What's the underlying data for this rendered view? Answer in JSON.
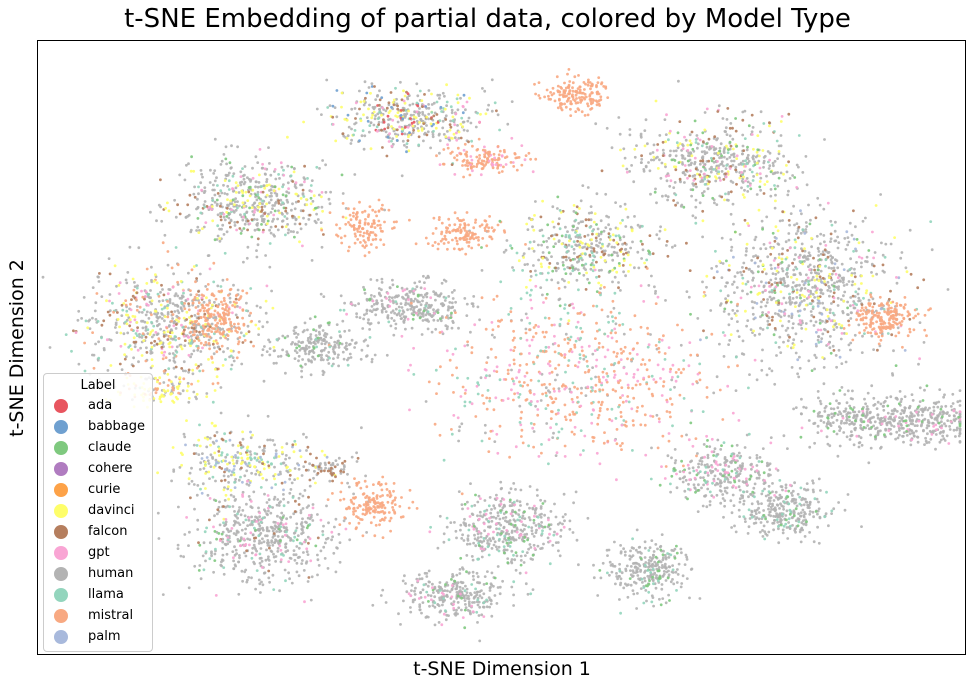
{
  "chart_data": {
    "type": "scatter",
    "title": "t-SNE Embedding of partial data, colored by Model Type",
    "xlabel": "t-SNE Dimension 1",
    "ylabel": "t-SNE Dimension 2",
    "xticks": [],
    "yticks": [],
    "grid": false,
    "legend": {
      "title": "Label",
      "placement": "lower-left",
      "entries": [
        {
          "name": "ada",
          "color": "#e8555f"
        },
        {
          "name": "babbage",
          "color": "#6fa0d0"
        },
        {
          "name": "claude",
          "color": "#7fc97f"
        },
        {
          "name": "cohere",
          "color": "#b07cc0"
        },
        {
          "name": "curie",
          "color": "#fda248"
        },
        {
          "name": "davinci",
          "color": "#fefe6a"
        },
        {
          "name": "falcon",
          "color": "#b57e5e"
        },
        {
          "name": "gpt",
          "color": "#f9a5d4"
        },
        {
          "name": "human",
          "color": "#b3b3b3"
        },
        {
          "name": "llama",
          "color": "#93d5bd"
        },
        {
          "name": "mistral",
          "color": "#f8a982"
        },
        {
          "name": "palm",
          "color": "#a8b9dc"
        }
      ]
    },
    "clusters": [
      {
        "x": 0.4,
        "y": 0.12,
        "rx": 0.08,
        "ry": 0.05,
        "n": 450,
        "mix": {
          "human": 0.55,
          "davinci": 0.15,
          "falcon": 0.1,
          "llama": 0.08,
          "gpt": 0.05,
          "babbage": 0.04,
          "ada": 0.03
        }
      },
      {
        "x": 0.48,
        "y": 0.19,
        "rx": 0.045,
        "ry": 0.025,
        "n": 140,
        "mix": {
          "mistral": 0.85,
          "gpt": 0.15
        }
      },
      {
        "x": 0.58,
        "y": 0.08,
        "rx": 0.035,
        "ry": 0.03,
        "n": 160,
        "mix": {
          "mistral": 1.0
        }
      },
      {
        "x": 0.73,
        "y": 0.19,
        "rx": 0.09,
        "ry": 0.07,
        "n": 550,
        "mix": {
          "human": 0.6,
          "davinci": 0.12,
          "falcon": 0.1,
          "claude": 0.06,
          "llama": 0.06,
          "gpt": 0.06
        }
      },
      {
        "x": 0.23,
        "y": 0.26,
        "rx": 0.08,
        "ry": 0.07,
        "n": 550,
        "mix": {
          "human": 0.6,
          "davinci": 0.12,
          "falcon": 0.1,
          "claude": 0.06,
          "gpt": 0.06,
          "llama": 0.06
        }
      },
      {
        "x": 0.35,
        "y": 0.3,
        "rx": 0.03,
        "ry": 0.04,
        "n": 120,
        "mix": {
          "mistral": 1.0
        }
      },
      {
        "x": 0.46,
        "y": 0.31,
        "rx": 0.035,
        "ry": 0.03,
        "n": 130,
        "mix": {
          "mistral": 1.0
        }
      },
      {
        "x": 0.59,
        "y": 0.34,
        "rx": 0.08,
        "ry": 0.07,
        "n": 420,
        "mix": {
          "human": 0.5,
          "davinci": 0.18,
          "falcon": 0.15,
          "llama": 0.1,
          "claude": 0.07
        }
      },
      {
        "x": 0.83,
        "y": 0.4,
        "rx": 0.1,
        "ry": 0.12,
        "n": 900,
        "mix": {
          "human": 0.65,
          "davinci": 0.08,
          "falcon": 0.07,
          "llama": 0.06,
          "palm": 0.05,
          "gpt": 0.05,
          "claude": 0.04
        }
      },
      {
        "x": 0.92,
        "y": 0.45,
        "rx": 0.035,
        "ry": 0.035,
        "n": 180,
        "mix": {
          "mistral": 1.0
        }
      },
      {
        "x": 0.14,
        "y": 0.46,
        "rx": 0.09,
        "ry": 0.09,
        "n": 700,
        "mix": {
          "human": 0.5,
          "davinci": 0.15,
          "falcon": 0.1,
          "mistral": 0.1,
          "llama": 0.08,
          "gpt": 0.07
        }
      },
      {
        "x": 0.19,
        "y": 0.45,
        "rx": 0.035,
        "ry": 0.05,
        "n": 180,
        "mix": {
          "mistral": 1.0
        }
      },
      {
        "x": 0.3,
        "y": 0.5,
        "rx": 0.05,
        "ry": 0.035,
        "n": 220,
        "mix": {
          "human": 0.88,
          "claude": 0.06,
          "llama": 0.06
        }
      },
      {
        "x": 0.4,
        "y": 0.43,
        "rx": 0.07,
        "ry": 0.04,
        "n": 320,
        "mix": {
          "human": 0.85,
          "claude": 0.05,
          "llama": 0.05,
          "gpt": 0.05
        }
      },
      {
        "x": 0.58,
        "y": 0.55,
        "rx": 0.15,
        "ry": 0.14,
        "n": 700,
        "mix": {
          "mistral": 0.45,
          "gpt": 0.25,
          "llama": 0.2,
          "human": 0.1
        }
      },
      {
        "x": 0.96,
        "y": 0.62,
        "rx": 0.06,
        "ry": 0.04,
        "n": 280,
        "mix": {
          "human": 0.88,
          "claude": 0.06,
          "gpt": 0.06
        }
      },
      {
        "x": 0.22,
        "y": 0.69,
        "rx": 0.08,
        "ry": 0.05,
        "n": 300,
        "mix": {
          "human": 0.45,
          "davinci": 0.25,
          "palm": 0.12,
          "llama": 0.1,
          "falcon": 0.08
        }
      },
      {
        "x": 0.24,
        "y": 0.81,
        "rx": 0.08,
        "ry": 0.08,
        "n": 550,
        "mix": {
          "human": 0.75,
          "gpt": 0.1,
          "llama": 0.08,
          "falcon": 0.04,
          "claude": 0.03
        }
      },
      {
        "x": 0.36,
        "y": 0.76,
        "rx": 0.035,
        "ry": 0.04,
        "n": 160,
        "mix": {
          "mistral": 1.0
        }
      },
      {
        "x": 0.51,
        "y": 0.8,
        "rx": 0.06,
        "ry": 0.06,
        "n": 420,
        "mix": {
          "human": 0.75,
          "gpt": 0.1,
          "llama": 0.08,
          "claude": 0.07
        }
      },
      {
        "x": 0.66,
        "y": 0.87,
        "rx": 0.045,
        "ry": 0.045,
        "n": 280,
        "mix": {
          "human": 0.85,
          "llama": 0.08,
          "claude": 0.07
        }
      },
      {
        "x": 0.45,
        "y": 0.91,
        "rx": 0.06,
        "ry": 0.04,
        "n": 300,
        "mix": {
          "human": 0.85,
          "gpt": 0.07,
          "claude": 0.04,
          "llama": 0.04
        }
      },
      {
        "x": 0.74,
        "y": 0.71,
        "rx": 0.06,
        "ry": 0.05,
        "n": 300,
        "mix": {
          "human": 0.7,
          "gpt": 0.15,
          "claude": 0.08,
          "llama": 0.07
        }
      },
      {
        "x": 0.81,
        "y": 0.77,
        "rx": 0.05,
        "ry": 0.045,
        "n": 300,
        "mix": {
          "human": 0.85,
          "claude": 0.07,
          "llama": 0.08
        }
      },
      {
        "x": 0.89,
        "y": 0.62,
        "rx": 0.06,
        "ry": 0.04,
        "n": 250,
        "mix": {
          "human": 0.9,
          "claude": 0.05,
          "gpt": 0.05
        }
      },
      {
        "x": 0.31,
        "y": 0.7,
        "rx": 0.03,
        "ry": 0.02,
        "n": 60,
        "mix": {
          "human": 0.7,
          "falcon": 0.3
        }
      },
      {
        "x": 0.13,
        "y": 0.57,
        "rx": 0.05,
        "ry": 0.03,
        "n": 120,
        "mix": {
          "davinci": 0.5,
          "human": 0.3,
          "mistral": 0.2
        }
      }
    ]
  }
}
